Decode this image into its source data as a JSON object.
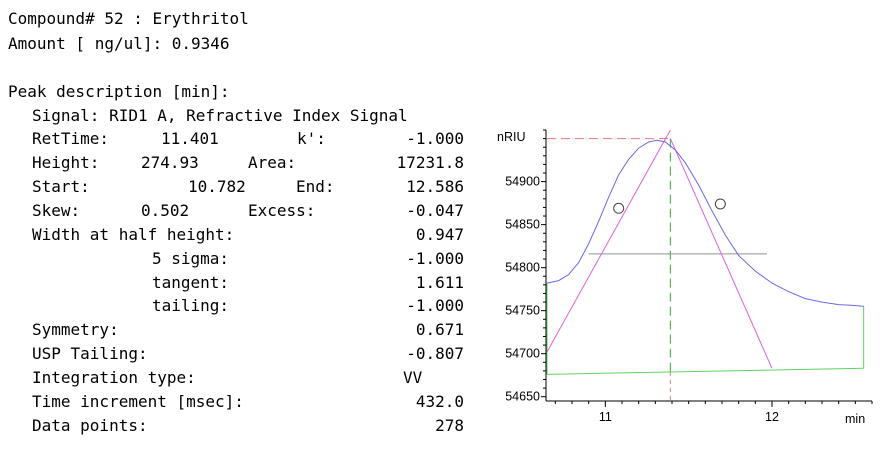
{
  "header": {
    "compound": "Compound# 52 : Erythritol",
    "amount": "Amount [ ng/ul]: 0.9346"
  },
  "peak": {
    "section_title": "Peak description [min]:",
    "signal": "Signal: RID1 A, Refractive Index Signal",
    "rows": [
      {
        "label": "RetTime:",
        "value1": "11.401",
        "label2": "k':",
        "value2": "-1.000"
      },
      {
        "label": "Height:",
        "value1": "274.93",
        "label2": "Area:",
        "value2": "17231.8"
      },
      {
        "label": "Start:",
        "value1": "10.782",
        "label2": "End:",
        "value2": "12.586"
      },
      {
        "label": "Skew:",
        "value1": "0.502",
        "label2": "Excess:",
        "value2": "-0.047"
      }
    ],
    "width_half_label": "Width at half height:",
    "width_half_value": "0.947",
    "width_rows": [
      {
        "label": "5 sigma:",
        "value": "-1.000"
      },
      {
        "label": "tangent:",
        "value": "1.611"
      },
      {
        "label": "tailing:",
        "value": "-1.000"
      }
    ],
    "bottom_rows": [
      {
        "label": "Symmetry:",
        "value": "0.671"
      },
      {
        "label": "USP Tailing:",
        "value": "-0.807"
      },
      {
        "label": "Integration type:",
        "value": "VV"
      },
      {
        "label": "Time increment [msec]:",
        "value": "432.0"
      },
      {
        "label": "Data points:",
        "value": "278"
      }
    ]
  },
  "chart_data": {
    "type": "line",
    "ylabel": "nRIU",
    "xlabel": "min",
    "xlim": [
      10.65,
      12.6
    ],
    "ylim": [
      54645,
      54960
    ],
    "y_ticks": [
      54650,
      54700,
      54750,
      54800,
      54850,
      54900
    ],
    "x_ticks": [
      11,
      12
    ],
    "colors": {
      "signal": "#6a6ae6",
      "tangent": "#e060e0",
      "baseline": "#5fd35f",
      "apex": "#38a838",
      "halfwidth": "#909090",
      "height": "#e87878"
    },
    "signal_curve": [
      [
        10.65,
        54782
      ],
      [
        10.72,
        54785
      ],
      [
        10.78,
        54792
      ],
      [
        10.84,
        54806
      ],
      [
        10.9,
        54828
      ],
      [
        10.96,
        54854
      ],
      [
        11.02,
        54882
      ],
      [
        11.08,
        54908
      ],
      [
        11.14,
        54926
      ],
      [
        11.2,
        54939
      ],
      [
        11.26,
        54946
      ],
      [
        11.31,
        54948
      ],
      [
        11.36,
        54946
      ],
      [
        11.42,
        54937
      ],
      [
        11.48,
        54922
      ],
      [
        11.56,
        54896
      ],
      [
        11.64,
        54866
      ],
      [
        11.72,
        54838
      ],
      [
        11.8,
        54814
      ],
      [
        11.9,
        54796
      ],
      [
        12.0,
        54782
      ],
      [
        12.1,
        54772
      ],
      [
        12.2,
        54764
      ],
      [
        12.3,
        54760
      ],
      [
        12.4,
        54757
      ],
      [
        12.5,
        54756
      ],
      [
        12.55,
        54755
      ]
    ],
    "tangent_left": [
      [
        10.65,
        54702
      ],
      [
        11.39,
        54960
      ]
    ],
    "tangent_right": [
      [
        11.39,
        54950
      ],
      [
        12.0,
        54683
      ]
    ],
    "inflection_points": [
      [
        11.08,
        54869
      ],
      [
        11.69,
        54874
      ]
    ],
    "baseline": [
      [
        10.65,
        54676
      ],
      [
        12.55,
        54683
      ]
    ],
    "apex": {
      "x": 11.39,
      "y_top": 54950,
      "y_base": 54679
    },
    "half_height_line": {
      "x1": 10.9,
      "x2": 11.97,
      "y": 54816
    }
  }
}
